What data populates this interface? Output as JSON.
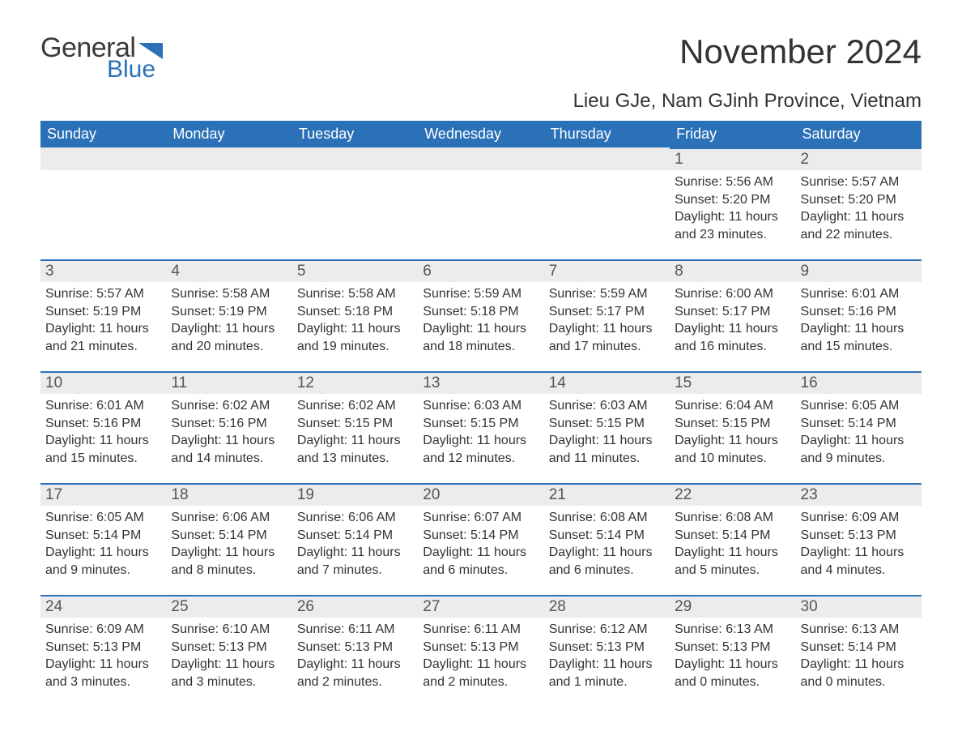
{
  "logo": {
    "general": "General",
    "blue": "Blue",
    "flag_color": "#2b71b8"
  },
  "title": "November 2024",
  "subtitle": "Lieu GJe, Nam GJinh Province, Vietnam",
  "colors": {
    "header_bg": "#2b71b8",
    "header_text": "#ffffff",
    "day_header_bg": "#ececec",
    "day_border_top": "#2b71b8",
    "body_text": "#333333",
    "logo_gray": "#3a3a3a",
    "logo_blue": "#2b71b8"
  },
  "weekdays": [
    "Sunday",
    "Monday",
    "Tuesday",
    "Wednesday",
    "Thursday",
    "Friday",
    "Saturday"
  ],
  "weeks": [
    [
      null,
      null,
      null,
      null,
      null,
      {
        "n": "1",
        "sunrise": "Sunrise: 5:56 AM",
        "sunset": "Sunset: 5:20 PM",
        "daylight": "Daylight: 11 hours and 23 minutes."
      },
      {
        "n": "2",
        "sunrise": "Sunrise: 5:57 AM",
        "sunset": "Sunset: 5:20 PM",
        "daylight": "Daylight: 11 hours and 22 minutes."
      }
    ],
    [
      {
        "n": "3",
        "sunrise": "Sunrise: 5:57 AM",
        "sunset": "Sunset: 5:19 PM",
        "daylight": "Daylight: 11 hours and 21 minutes."
      },
      {
        "n": "4",
        "sunrise": "Sunrise: 5:58 AM",
        "sunset": "Sunset: 5:19 PM",
        "daylight": "Daylight: 11 hours and 20 minutes."
      },
      {
        "n": "5",
        "sunrise": "Sunrise: 5:58 AM",
        "sunset": "Sunset: 5:18 PM",
        "daylight": "Daylight: 11 hours and 19 minutes."
      },
      {
        "n": "6",
        "sunrise": "Sunrise: 5:59 AM",
        "sunset": "Sunset: 5:18 PM",
        "daylight": "Daylight: 11 hours and 18 minutes."
      },
      {
        "n": "7",
        "sunrise": "Sunrise: 5:59 AM",
        "sunset": "Sunset: 5:17 PM",
        "daylight": "Daylight: 11 hours and 17 minutes."
      },
      {
        "n": "8",
        "sunrise": "Sunrise: 6:00 AM",
        "sunset": "Sunset: 5:17 PM",
        "daylight": "Daylight: 11 hours and 16 minutes."
      },
      {
        "n": "9",
        "sunrise": "Sunrise: 6:01 AM",
        "sunset": "Sunset: 5:16 PM",
        "daylight": "Daylight: 11 hours and 15 minutes."
      }
    ],
    [
      {
        "n": "10",
        "sunrise": "Sunrise: 6:01 AM",
        "sunset": "Sunset: 5:16 PM",
        "daylight": "Daylight: 11 hours and 15 minutes."
      },
      {
        "n": "11",
        "sunrise": "Sunrise: 6:02 AM",
        "sunset": "Sunset: 5:16 PM",
        "daylight": "Daylight: 11 hours and 14 minutes."
      },
      {
        "n": "12",
        "sunrise": "Sunrise: 6:02 AM",
        "sunset": "Sunset: 5:15 PM",
        "daylight": "Daylight: 11 hours and 13 minutes."
      },
      {
        "n": "13",
        "sunrise": "Sunrise: 6:03 AM",
        "sunset": "Sunset: 5:15 PM",
        "daylight": "Daylight: 11 hours and 12 minutes."
      },
      {
        "n": "14",
        "sunrise": "Sunrise: 6:03 AM",
        "sunset": "Sunset: 5:15 PM",
        "daylight": "Daylight: 11 hours and 11 minutes."
      },
      {
        "n": "15",
        "sunrise": "Sunrise: 6:04 AM",
        "sunset": "Sunset: 5:15 PM",
        "daylight": "Daylight: 11 hours and 10 minutes."
      },
      {
        "n": "16",
        "sunrise": "Sunrise: 6:05 AM",
        "sunset": "Sunset: 5:14 PM",
        "daylight": "Daylight: 11 hours and 9 minutes."
      }
    ],
    [
      {
        "n": "17",
        "sunrise": "Sunrise: 6:05 AM",
        "sunset": "Sunset: 5:14 PM",
        "daylight": "Daylight: 11 hours and 9 minutes."
      },
      {
        "n": "18",
        "sunrise": "Sunrise: 6:06 AM",
        "sunset": "Sunset: 5:14 PM",
        "daylight": "Daylight: 11 hours and 8 minutes."
      },
      {
        "n": "19",
        "sunrise": "Sunrise: 6:06 AM",
        "sunset": "Sunset: 5:14 PM",
        "daylight": "Daylight: 11 hours and 7 minutes."
      },
      {
        "n": "20",
        "sunrise": "Sunrise: 6:07 AM",
        "sunset": "Sunset: 5:14 PM",
        "daylight": "Daylight: 11 hours and 6 minutes."
      },
      {
        "n": "21",
        "sunrise": "Sunrise: 6:08 AM",
        "sunset": "Sunset: 5:14 PM",
        "daylight": "Daylight: 11 hours and 6 minutes."
      },
      {
        "n": "22",
        "sunrise": "Sunrise: 6:08 AM",
        "sunset": "Sunset: 5:14 PM",
        "daylight": "Daylight: 11 hours and 5 minutes."
      },
      {
        "n": "23",
        "sunrise": "Sunrise: 6:09 AM",
        "sunset": "Sunset: 5:13 PM",
        "daylight": "Daylight: 11 hours and 4 minutes."
      }
    ],
    [
      {
        "n": "24",
        "sunrise": "Sunrise: 6:09 AM",
        "sunset": "Sunset: 5:13 PM",
        "daylight": "Daylight: 11 hours and 3 minutes."
      },
      {
        "n": "25",
        "sunrise": "Sunrise: 6:10 AM",
        "sunset": "Sunset: 5:13 PM",
        "daylight": "Daylight: 11 hours and 3 minutes."
      },
      {
        "n": "26",
        "sunrise": "Sunrise: 6:11 AM",
        "sunset": "Sunset: 5:13 PM",
        "daylight": "Daylight: 11 hours and 2 minutes."
      },
      {
        "n": "27",
        "sunrise": "Sunrise: 6:11 AM",
        "sunset": "Sunset: 5:13 PM",
        "daylight": "Daylight: 11 hours and 2 minutes."
      },
      {
        "n": "28",
        "sunrise": "Sunrise: 6:12 AM",
        "sunset": "Sunset: 5:13 PM",
        "daylight": "Daylight: 11 hours and 1 minute."
      },
      {
        "n": "29",
        "sunrise": "Sunrise: 6:13 AM",
        "sunset": "Sunset: 5:13 PM",
        "daylight": "Daylight: 11 hours and 0 minutes."
      },
      {
        "n": "30",
        "sunrise": "Sunrise: 6:13 AM",
        "sunset": "Sunset: 5:14 PM",
        "daylight": "Daylight: 11 hours and 0 minutes."
      }
    ]
  ]
}
